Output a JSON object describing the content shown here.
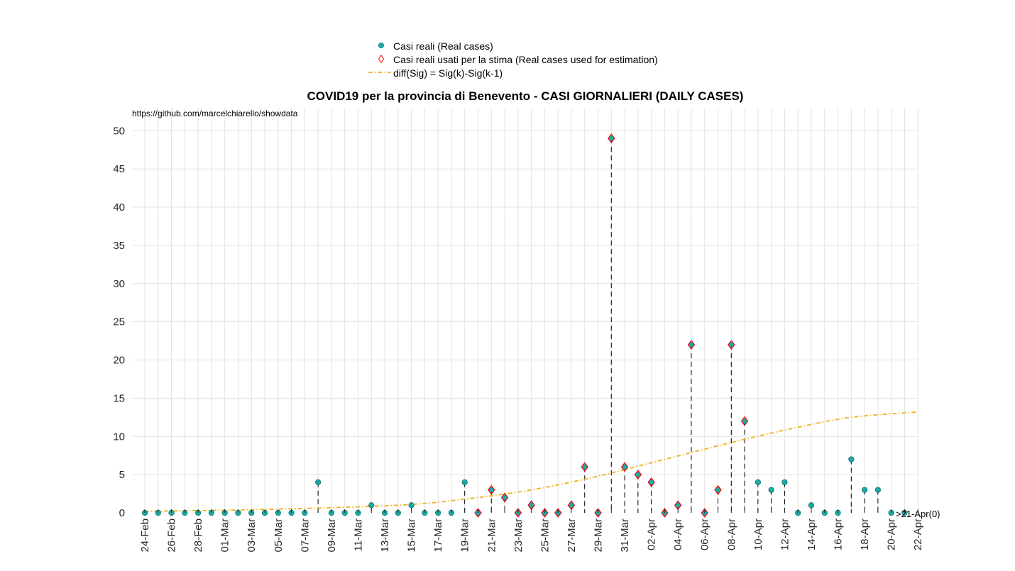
{
  "chart_data": {
    "type": "scatter",
    "title": "COVID19 per la provincia di Benevento - CASI GIORNALIERI (DAILY CASES)",
    "source_text": "https://github.com/marcelchiarello/showdata",
    "end_label": ">21-Apr(0)",
    "xlabel": "",
    "ylabel": "",
    "ylim": [
      0,
      53
    ],
    "yticks": [
      0,
      5,
      10,
      15,
      20,
      25,
      30,
      35,
      40,
      45,
      50
    ],
    "grid": true,
    "legend_position": "top-center",
    "legend": [
      "Casi reali (Real cases)",
      "Casi reali usati per la stima (Real cases used for estimation)",
      "diff(Sig) = Sig(k)-Sig(k-1)"
    ],
    "x_tick_labels": [
      "24-Feb",
      "26-Feb",
      "28-Feb",
      "01-Mar",
      "03-Mar",
      "05-Mar",
      "07-Mar",
      "09-Mar",
      "11-Mar",
      "13-Mar",
      "15-Mar",
      "17-Mar",
      "19-Mar",
      "21-Mar",
      "23-Mar",
      "25-Mar",
      "27-Mar",
      "29-Mar",
      "31-Mar",
      "02-Apr",
      "04-Apr",
      "06-Apr",
      "08-Apr",
      "10-Apr",
      "12-Apr",
      "14-Apr",
      "16-Apr",
      "18-Apr",
      "20-Apr",
      "22-Apr"
    ],
    "dates": [
      "24-Feb",
      "25-Feb",
      "26-Feb",
      "27-Feb",
      "28-Feb",
      "29-Feb",
      "01-Mar",
      "02-Mar",
      "03-Mar",
      "04-Mar",
      "05-Mar",
      "06-Mar",
      "07-Mar",
      "08-Mar",
      "09-Mar",
      "10-Mar",
      "11-Mar",
      "12-Mar",
      "13-Mar",
      "14-Mar",
      "15-Mar",
      "16-Mar",
      "17-Mar",
      "18-Mar",
      "19-Mar",
      "20-Mar",
      "21-Mar",
      "22-Mar",
      "23-Mar",
      "24-Mar",
      "25-Mar",
      "26-Mar",
      "27-Mar",
      "28-Mar",
      "29-Mar",
      "30-Mar",
      "31-Mar",
      "01-Apr",
      "02-Apr",
      "03-Apr",
      "04-Apr",
      "05-Apr",
      "06-Apr",
      "07-Apr",
      "08-Apr",
      "09-Apr",
      "10-Apr",
      "11-Apr",
      "12-Apr",
      "13-Apr",
      "14-Apr",
      "15-Apr",
      "16-Apr",
      "17-Apr",
      "18-Apr",
      "19-Apr",
      "20-Apr",
      "21-Apr",
      "22-Apr"
    ],
    "series": [
      {
        "name": "Casi reali (Real cases)",
        "marker": "circle",
        "color": "#1aaaa8",
        "values": [
          0,
          0,
          0,
          0,
          0,
          0,
          0,
          0,
          0,
          0,
          0,
          0,
          0,
          4,
          0,
          0,
          0,
          1,
          0,
          0,
          1,
          0,
          0,
          0,
          4,
          0,
          3,
          2,
          0,
          1,
          0,
          0,
          1,
          6,
          0,
          49,
          6,
          5,
          4,
          0,
          1,
          22,
          0,
          3,
          22,
          12,
          4,
          3,
          4,
          0,
          1,
          0,
          0,
          7,
          3,
          3,
          0,
          0
        ]
      },
      {
        "name": "Casi reali usati per la stima (Real cases used for estimation)",
        "marker": "diamond",
        "color": "#ff0000",
        "start_date": "20-Mar",
        "values": [
          0,
          3,
          2,
          0,
          1,
          0,
          0,
          1,
          6,
          0,
          49,
          6,
          5,
          4,
          0,
          1,
          22,
          0,
          3,
          22,
          12
        ]
      },
      {
        "name": "diff(Sig) = Sig(k)-Sig(k-1)",
        "marker": "dash-dot line",
        "color": "#edb120",
        "x_dates": [
          "24-Feb",
          "04-Mar",
          "14-Mar",
          "19-Mar",
          "24-Mar",
          "29-Mar",
          "03-Apr",
          "08-Apr",
          "13-Apr",
          "17-Apr",
          "22-Apr"
        ],
        "values": [
          0.2,
          0.45,
          1.0,
          1.8,
          3.0,
          4.8,
          7.0,
          9.2,
          11.2,
          12.5,
          13.2
        ]
      }
    ]
  }
}
